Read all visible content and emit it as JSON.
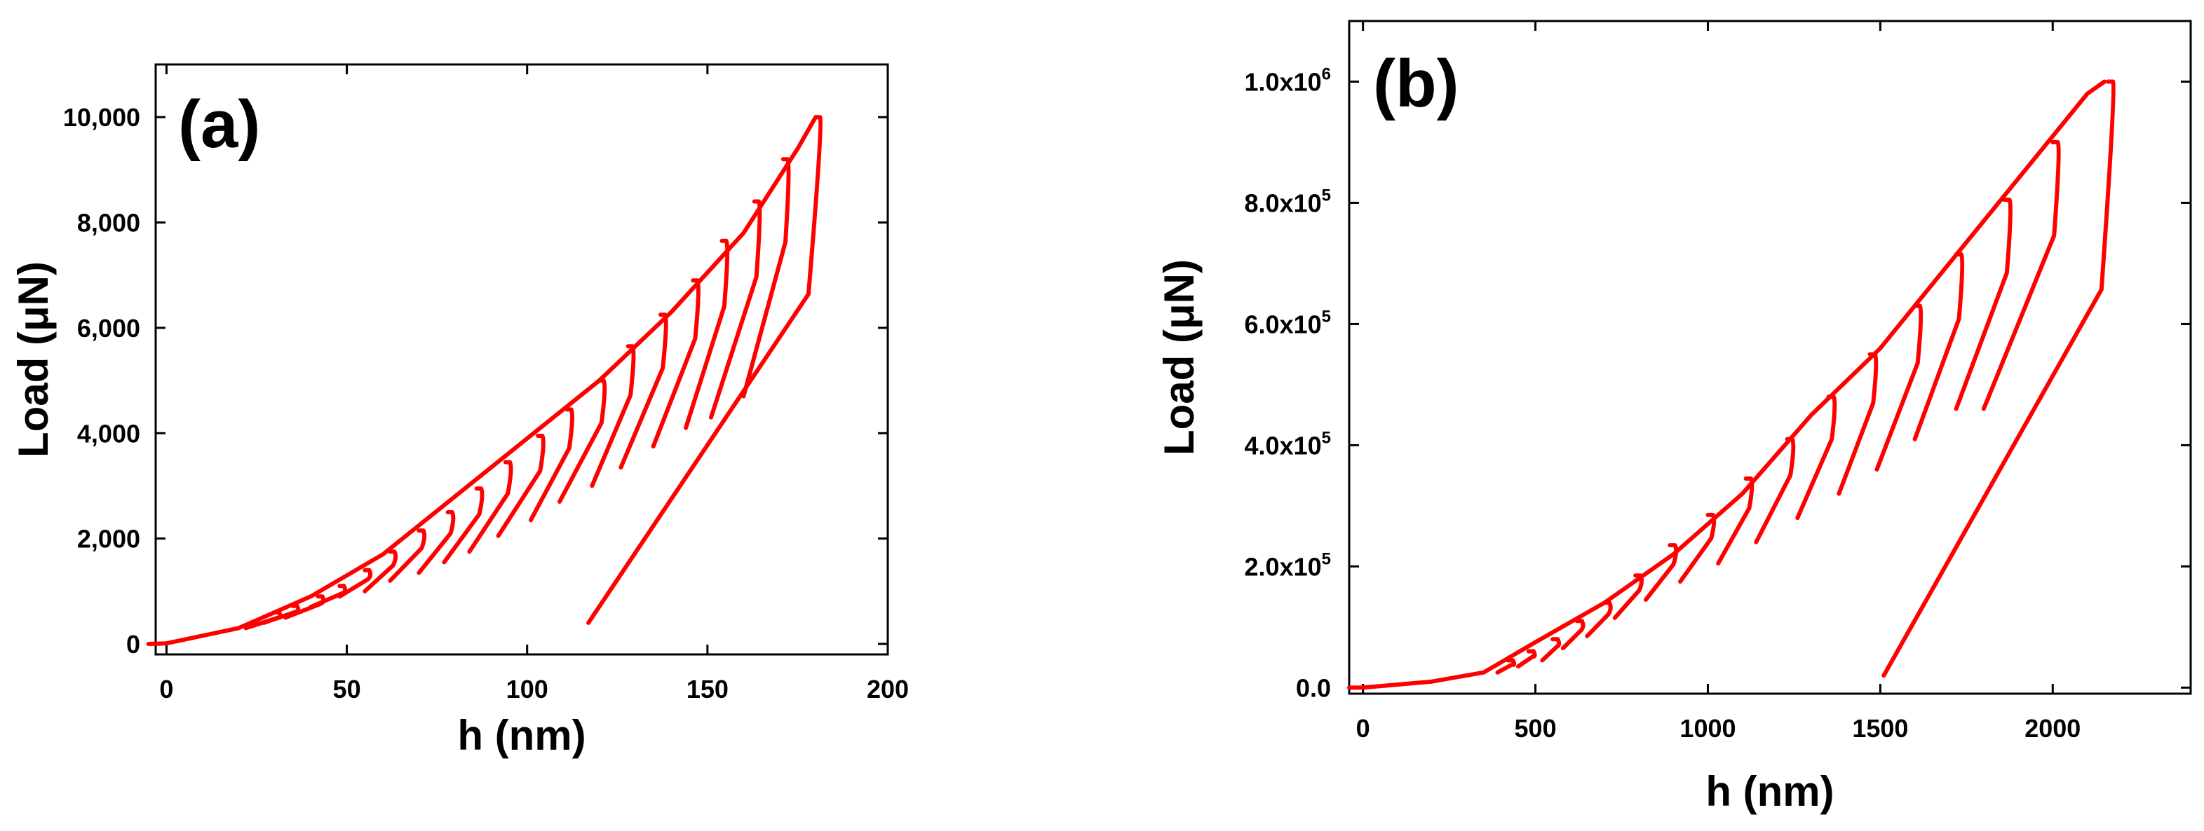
{
  "chart_data": [
    {
      "type": "line",
      "panel_label": "(a)",
      "xlabel": "h (nm)",
      "ylabel_main": "Load (",
      "ylabel_unit": "μN",
      "ylabel_end": ")",
      "xlim": [
        -3,
        200
      ],
      "ylim": [
        -200,
        11000
      ],
      "x_ticks": [
        0,
        50,
        100,
        150,
        200
      ],
      "x_tick_labels": [
        "0",
        "50",
        "100",
        "150",
        "200"
      ],
      "y_ticks": [
        0,
        2000,
        4000,
        6000,
        8000,
        10000
      ],
      "y_tick_labels": [
        "0",
        "2,000",
        "4,000",
        "6,000",
        "8,000",
        "10,000"
      ],
      "grid": false,
      "color": "#ff0000",
      "loading_envelope": {
        "x": [
          -5,
          0,
          20,
          40,
          60,
          80,
          100,
          120,
          140,
          160,
          175,
          180
        ],
        "y": [
          0,
          10,
          300,
          900,
          1700,
          2800,
          3900,
          5000,
          6300,
          7800,
          9400,
          10000
        ]
      },
      "cycles": [
        {
          "peak_h": 30,
          "peak_load": 600,
          "unload_end_h": 22,
          "unload_end_load": 300
        },
        {
          "peak_h": 35,
          "peak_load": 720,
          "unload_end_h": 27,
          "unload_end_load": 400
        },
        {
          "peak_h": 42,
          "peak_load": 900,
          "unload_end_h": 33,
          "unload_end_load": 500
        },
        {
          "peak_h": 48,
          "peak_load": 1100,
          "unload_end_h": 40,
          "unload_end_load": 700
        },
        {
          "peak_h": 55,
          "peak_load": 1400,
          "unload_end_h": 48,
          "unload_end_load": 900
        },
        {
          "peak_h": 62,
          "peak_load": 1750,
          "unload_end_h": 55,
          "unload_end_load": 1000
        },
        {
          "peak_h": 70,
          "peak_load": 2150,
          "unload_end_h": 62,
          "unload_end_load": 1200
        },
        {
          "peak_h": 78,
          "peak_load": 2500,
          "unload_end_h": 70,
          "unload_end_load": 1350
        },
        {
          "peak_h": 86,
          "peak_load": 2950,
          "unload_end_h": 77,
          "unload_end_load": 1550
        },
        {
          "peak_h": 94,
          "peak_load": 3450,
          "unload_end_h": 84,
          "unload_end_load": 1750
        },
        {
          "peak_h": 103,
          "peak_load": 3950,
          "unload_end_h": 92,
          "unload_end_load": 2050
        },
        {
          "peak_h": 111,
          "peak_load": 4450,
          "unload_end_h": 101,
          "unload_end_load": 2350
        },
        {
          "peak_h": 120,
          "peak_load": 5000,
          "unload_end_h": 109,
          "unload_end_load": 2700
        },
        {
          "peak_h": 128,
          "peak_load": 5650,
          "unload_end_h": 118,
          "unload_end_load": 3000
        },
        {
          "peak_h": 137,
          "peak_load": 6250,
          "unload_end_h": 126,
          "unload_end_load": 3350
        },
        {
          "peak_h": 146,
          "peak_load": 6900,
          "unload_end_h": 135,
          "unload_end_load": 3750
        },
        {
          "peak_h": 154,
          "peak_load": 7650,
          "unload_end_h": 144,
          "unload_end_load": 4100
        },
        {
          "peak_h": 163,
          "peak_load": 8400,
          "unload_end_h": 151,
          "unload_end_load": 4300
        },
        {
          "peak_h": 171,
          "peak_load": 9200,
          "unload_end_h": 160,
          "unload_end_load": 4700
        },
        {
          "peak_h": 180,
          "peak_load": 10000,
          "unload_end_h": 117,
          "unload_end_load": 400
        }
      ]
    },
    {
      "type": "line",
      "panel_label": "(b)",
      "xlabel": "h (nm)",
      "ylabel_main": "Load (",
      "ylabel_unit": "μN",
      "ylabel_end": ")",
      "xlim": [
        -40,
        2400
      ],
      "ylim": [
        -10000,
        1100000
      ],
      "x_ticks": [
        0,
        500,
        1000,
        1500,
        2000
      ],
      "x_tick_labels": [
        "0",
        "500",
        "1000",
        "1500",
        "2000"
      ],
      "y_ticks": [
        0,
        200000,
        400000,
        600000,
        800000,
        1000000
      ],
      "y_tick_labels": [
        {
          "mantissa": "0.0",
          "exp": ""
        },
        {
          "mantissa": "2.0x10",
          "exp": "5"
        },
        {
          "mantissa": "4.0x10",
          "exp": "5"
        },
        {
          "mantissa": "6.0x10",
          "exp": "5"
        },
        {
          "mantissa": "8.0x10",
          "exp": "5"
        },
        {
          "mantissa": "1.0x10",
          "exp": "6"
        }
      ],
      "grid": false,
      "color": "#ff0000",
      "loading_envelope": {
        "x": [
          -40,
          0,
          200,
          350,
          500,
          700,
          900,
          1100,
          1300,
          1500,
          1700,
          1900,
          2100,
          2150
        ],
        "y": [
          0,
          0,
          10000,
          25000,
          75000,
          140000,
          220000,
          320000,
          450000,
          560000,
          700000,
          840000,
          980000,
          1000000
        ]
      },
      "cycles": [
        {
          "peak_h": 420,
          "peak_load": 45000,
          "unload_end_h": 390,
          "unload_end_load": 25000
        },
        {
          "peak_h": 480,
          "peak_load": 60000,
          "unload_end_h": 450,
          "unload_end_load": 35000
        },
        {
          "peak_h": 550,
          "peak_load": 80000,
          "unload_end_h": 520,
          "unload_end_load": 45000
        },
        {
          "peak_h": 620,
          "peak_load": 110000,
          "unload_end_h": 580,
          "unload_end_load": 65000
        },
        {
          "peak_h": 700,
          "peak_load": 140000,
          "unload_end_h": 650,
          "unload_end_load": 85000
        },
        {
          "peak_h": 790,
          "peak_load": 185000,
          "unload_end_h": 730,
          "unload_end_load": 115000
        },
        {
          "peak_h": 890,
          "peak_load": 235000,
          "unload_end_h": 820,
          "unload_end_load": 145000
        },
        {
          "peak_h": 1000,
          "peak_load": 285000,
          "unload_end_h": 920,
          "unload_end_load": 175000
        },
        {
          "peak_h": 1110,
          "peak_load": 345000,
          "unload_end_h": 1030,
          "unload_end_load": 205000
        },
        {
          "peak_h": 1230,
          "peak_load": 410000,
          "unload_end_h": 1140,
          "unload_end_load": 240000
        },
        {
          "peak_h": 1350,
          "peak_load": 480000,
          "unload_end_h": 1260,
          "unload_end_load": 280000
        },
        {
          "peak_h": 1470,
          "peak_load": 550000,
          "unload_end_h": 1380,
          "unload_end_load": 320000
        },
        {
          "peak_h": 1600,
          "peak_load": 630000,
          "unload_end_h": 1490,
          "unload_end_load": 360000
        },
        {
          "peak_h": 1720,
          "peak_load": 715000,
          "unload_end_h": 1600,
          "unload_end_load": 410000
        },
        {
          "peak_h": 1860,
          "peak_load": 805000,
          "unload_end_h": 1720,
          "unload_end_load": 460000
        },
        {
          "peak_h": 2000,
          "peak_load": 900000,
          "unload_end_h": 1800,
          "unload_end_load": 460000
        },
        {
          "peak_h": 2160,
          "peak_load": 1000000,
          "unload_end_h": 1510,
          "unload_end_load": 20000
        }
      ]
    }
  ]
}
